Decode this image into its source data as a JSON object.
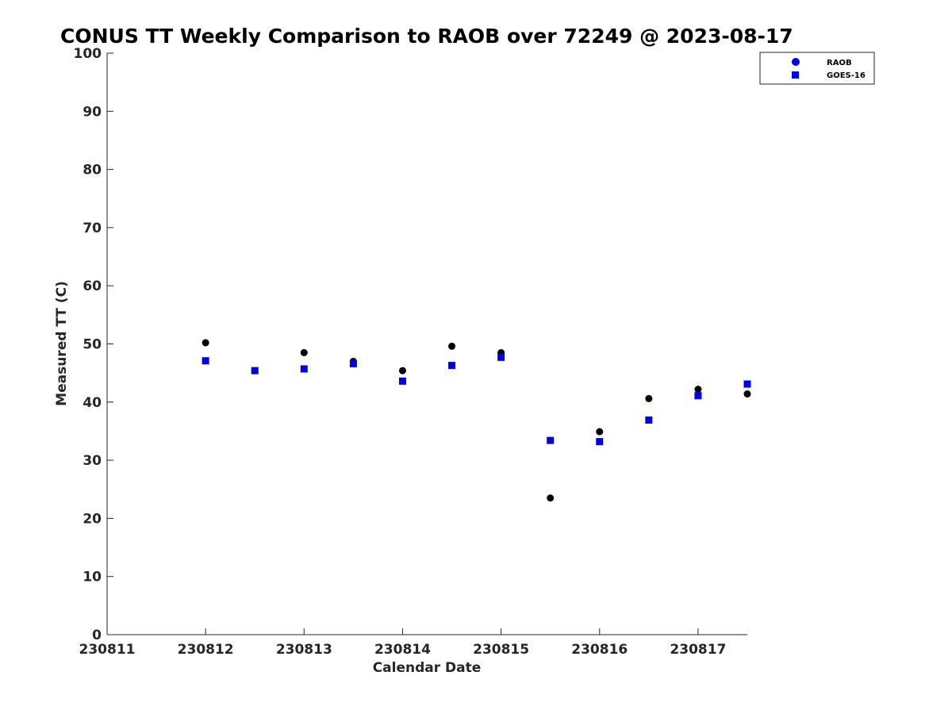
{
  "chart_data": {
    "type": "scatter",
    "title": "CONUS TT Weekly Comparison to RAOB over 72249 @ 2023-08-17",
    "xlabel": "Calendar Date",
    "ylabel": "Measured TT (C)",
    "xlim": [
      "230811",
      "230817 12Z"
    ],
    "ylim": [
      0,
      100
    ],
    "x_tick_labels": [
      "230811",
      "230812",
      "230813",
      "230814",
      "230815",
      "230816",
      "230817"
    ],
    "y_ticks": [
      0,
      10,
      20,
      30,
      40,
      50,
      60,
      70,
      80,
      90,
      100
    ],
    "grid": false,
    "legend_position": "top-right",
    "x": [
      "230812 00Z",
      "230812 12Z",
      "230813 00Z",
      "230813 12Z",
      "230814 00Z",
      "230814 12Z",
      "230815 00Z",
      "230815 12Z",
      "230816 00Z",
      "230816 12Z",
      "230817 00Z",
      "230817 12Z"
    ],
    "series": [
      {
        "name": "RAOB",
        "marker": "circle",
        "color": "#000000",
        "legend_color": "#0000e6",
        "values": [
          50.2,
          45.4,
          48.5,
          47.0,
          45.4,
          49.6,
          48.5,
          23.5,
          34.9,
          40.6,
          42.2,
          41.4
        ]
      },
      {
        "name": "GOES-16",
        "marker": "square",
        "color": "#0000e6",
        "values": [
          47.1,
          45.4,
          45.7,
          46.6,
          43.6,
          46.3,
          47.7,
          33.4,
          33.2,
          36.9,
          41.1,
          43.1
        ]
      }
    ]
  }
}
